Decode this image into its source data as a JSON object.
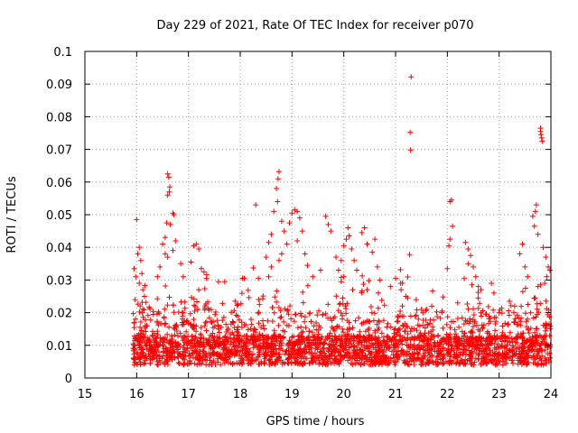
{
  "chart_data": {
    "type": "scatter",
    "title": "Day 229 of 2021, Rate Of TEC Index for receiver p070",
    "xlabel": "GPS time / hours",
    "ylabel": "ROTI / TECUs",
    "xlim": [
      15,
      24
    ],
    "ylim": [
      0,
      0.1
    ],
    "grid": true,
    "marker": "plus",
    "color": "#ff0000",
    "x_ticks": [
      "15",
      "16",
      "17",
      "18",
      "19",
      "20",
      "21",
      "22",
      "23",
      "24"
    ],
    "y_ticks": [
      "0",
      "0.01",
      "0.02",
      "0.03",
      "0.04",
      "0.05",
      "0.06",
      "0.07",
      "0.08",
      "0.09",
      "0.1"
    ],
    "series": [
      {
        "name": "ROTI",
        "points": [
          [
            15.95,
            0.0335
          ],
          [
            15.97,
            0.024
          ],
          [
            16.0,
            0.0485
          ],
          [
            16.02,
            0.038
          ],
          [
            16.05,
            0.04
          ],
          [
            16.08,
            0.036
          ],
          [
            16.1,
            0.032
          ],
          [
            16.05,
            0.029
          ],
          [
            15.98,
            0.031
          ],
          [
            16.12,
            0.027
          ],
          [
            16.15,
            0.025
          ],
          [
            16.6,
            0.0625
          ],
          [
            16.62,
            0.0615
          ],
          [
            16.63,
            0.057
          ],
          [
            16.64,
            0.0585
          ],
          [
            16.6,
            0.056
          ],
          [
            16.58,
            0.0475
          ],
          [
            16.65,
            0.047
          ],
          [
            16.7,
            0.0505
          ],
          [
            16.72,
            0.05
          ],
          [
            16.55,
            0.043
          ],
          [
            16.5,
            0.041
          ],
          [
            16.55,
            0.038
          ],
          [
            16.6,
            0.037
          ],
          [
            16.75,
            0.042
          ],
          [
            16.7,
            0.039
          ],
          [
            16.45,
            0.034
          ],
          [
            16.4,
            0.031
          ],
          [
            16.85,
            0.035
          ],
          [
            16.9,
            0.031
          ],
          [
            17.1,
            0.0405
          ],
          [
            17.15,
            0.041
          ],
          [
            17.2,
            0.0395
          ],
          [
            17.05,
            0.0355
          ],
          [
            17.25,
            0.0335
          ],
          [
            17.3,
            0.0325
          ],
          [
            17.35,
            0.0305
          ],
          [
            17.2,
            0.027
          ],
          [
            17.7,
            0.0295
          ],
          [
            17.9,
            0.0235
          ],
          [
            18.3,
            0.053
          ],
          [
            18.35,
            0.0305
          ],
          [
            18.5,
            0.037
          ],
          [
            18.55,
            0.0415
          ],
          [
            18.6,
            0.044
          ],
          [
            18.75,
            0.0632
          ],
          [
            18.73,
            0.061
          ],
          [
            18.7,
            0.058
          ],
          [
            18.72,
            0.054
          ],
          [
            18.65,
            0.051
          ],
          [
            18.8,
            0.048
          ],
          [
            18.85,
            0.045
          ],
          [
            18.9,
            0.041
          ],
          [
            18.8,
            0.038
          ],
          [
            18.75,
            0.036
          ],
          [
            18.6,
            0.034
          ],
          [
            18.55,
            0.031
          ],
          [
            18.95,
            0.0475
          ],
          [
            19.0,
            0.0505
          ],
          [
            19.05,
            0.0515
          ],
          [
            19.1,
            0.051
          ],
          [
            19.15,
            0.049
          ],
          [
            19.2,
            0.045
          ],
          [
            19.1,
            0.042
          ],
          [
            19.25,
            0.038
          ],
          [
            19.3,
            0.0345
          ],
          [
            19.4,
            0.031
          ],
          [
            19.55,
            0.033
          ],
          [
            19.65,
            0.0495
          ],
          [
            19.7,
            0.047
          ],
          [
            19.75,
            0.045
          ],
          [
            19.85,
            0.037
          ],
          [
            19.9,
            0.033
          ],
          [
            19.95,
            0.036
          ],
          [
            20.0,
            0.0405
          ],
          [
            20.05,
            0.0425
          ],
          [
            20.1,
            0.0435
          ],
          [
            20.08,
            0.046
          ],
          [
            20.15,
            0.0395
          ],
          [
            20.2,
            0.036
          ],
          [
            20.25,
            0.033
          ],
          [
            20.0,
            0.031
          ],
          [
            19.95,
            0.0295
          ],
          [
            20.35,
            0.0445
          ],
          [
            20.4,
            0.046
          ],
          [
            20.45,
            0.041
          ],
          [
            20.55,
            0.0385
          ],
          [
            20.6,
            0.0425
          ],
          [
            20.65,
            0.034
          ],
          [
            20.7,
            0.03
          ],
          [
            20.45,
            0.027
          ],
          [
            20.9,
            0.028
          ],
          [
            21.0,
            0.0305
          ],
          [
            21.1,
            0.029
          ],
          [
            21.2,
            0.025
          ],
          [
            21.3,
            0.0922
          ],
          [
            21.28,
            0.0752
          ],
          [
            21.29,
            0.0698
          ],
          [
            21.27,
            0.0378
          ],
          [
            21.4,
            0.024
          ],
          [
            21.5,
            0.021
          ],
          [
            21.7,
            0.022
          ],
          [
            21.9,
            0.0205
          ],
          [
            22.05,
            0.054
          ],
          [
            22.08,
            0.0545
          ],
          [
            22.1,
            0.0465
          ],
          [
            22.05,
            0.0425
          ],
          [
            22.03,
            0.0405
          ],
          [
            22.0,
            0.0335
          ],
          [
            22.2,
            0.023
          ],
          [
            22.35,
            0.0415
          ],
          [
            22.4,
            0.0395
          ],
          [
            22.45,
            0.0375
          ],
          [
            22.4,
            0.035
          ],
          [
            22.5,
            0.034
          ],
          [
            22.55,
            0.031
          ],
          [
            22.6,
            0.028
          ],
          [
            22.65,
            0.027
          ],
          [
            22.85,
            0.029
          ],
          [
            22.9,
            0.026
          ],
          [
            23.0,
            0.02
          ],
          [
            23.3,
            0.022
          ],
          [
            23.4,
            0.038
          ],
          [
            23.45,
            0.041
          ],
          [
            23.5,
            0.034
          ],
          [
            23.55,
            0.031
          ],
          [
            23.65,
            0.0495
          ],
          [
            23.7,
            0.051
          ],
          [
            23.72,
            0.053
          ],
          [
            23.68,
            0.0465
          ],
          [
            23.75,
            0.044
          ],
          [
            23.8,
            0.0755
          ],
          [
            23.81,
            0.0745
          ],
          [
            23.82,
            0.0735
          ],
          [
            23.83,
            0.0725
          ],
          [
            23.8,
            0.0765
          ],
          [
            23.85,
            0.04
          ],
          [
            23.9,
            0.037
          ],
          [
            23.95,
            0.034
          ],
          [
            23.98,
            0.033
          ],
          [
            23.92,
            0.031
          ],
          [
            23.88,
            0.029
          ],
          [
            23.75,
            0.028
          ]
        ]
      }
    ]
  }
}
